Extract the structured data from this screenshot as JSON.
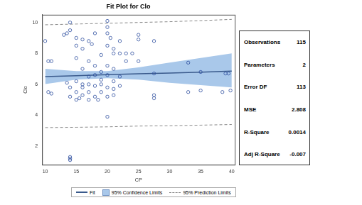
{
  "chart_data": {
    "type": "scatter",
    "title": "Fit Plot for Clo",
    "x_label": "CP",
    "y_label": "Clo",
    "xlim": [
      9.5,
      40.5
    ],
    "xticks": [
      10,
      15,
      20,
      25,
      30,
      35,
      40
    ],
    "ylim": [
      0.8,
      10.5
    ],
    "yticks": [
      2,
      4,
      6,
      8,
      10
    ],
    "grid": false,
    "legend": "bottom",
    "points": {
      "color": "#2f4f9f",
      "marker": "circle",
      "x": [
        10,
        10.5,
        11,
        10.5,
        11,
        13,
        13.5,
        14,
        14,
        13.5,
        14,
        14,
        14,
        14,
        14,
        15,
        15,
        15,
        15,
        15,
        15,
        15.5,
        16,
        16,
        16,
        16,
        16,
        16,
        17,
        17,
        17,
        17,
        17,
        17,
        17.5,
        18,
        18,
        18,
        18,
        18,
        18.5,
        19,
        19,
        19,
        19,
        19,
        20,
        20,
        20,
        20,
        20,
        20,
        20,
        20,
        20,
        20.5,
        21,
        21,
        21,
        21,
        21,
        21,
        22,
        22,
        22,
        22,
        23,
        23,
        24,
        25,
        25,
        25,
        27.5,
        27.5,
        27.5,
        27.5,
        33,
        33,
        35,
        35,
        38.5,
        39,
        39.5,
        39.8
      ],
      "y": [
        8.8,
        7.5,
        7.5,
        5.5,
        5.4,
        9.2,
        9.3,
        9.5,
        10,
        6.1,
        5.2,
        5.8,
        1.3,
        1.2,
        1.1,
        7.7,
        8.5,
        9.0,
        5.0,
        5.5,
        6.2,
        5.1,
        8.3,
        8.9,
        7.0,
        6.0,
        5.8,
        5.3,
        8.8,
        7.5,
        6.5,
        6.0,
        5.5,
        5.0,
        8.6,
        9.3,
        7.2,
        6.6,
        5.9,
        5.2,
        5.0,
        6.8,
        6.3,
        6.0,
        5.5,
        7.9,
        10.1,
        9.7,
        9.3,
        8.5,
        7.2,
        6.6,
        5.8,
        5.2,
        3.9,
        9.0,
        8.3,
        8.0,
        7.0,
        6.2,
        5.7,
        5.3,
        8.8,
        8.0,
        6.5,
        5.9,
        7.5,
        8.0,
        8.0,
        9.2,
        8.9,
        7.5,
        8.8,
        6.7,
        5.3,
        5.1,
        7.4,
        5.5,
        6.8,
        5.6,
        5.5,
        6.7,
        6.7,
        5.6
      ]
    },
    "series": [
      {
        "name": "Fit",
        "type": "line",
        "line_style": "solid",
        "color": "#3a5a8c",
        "x": [
          10,
          15,
          20,
          25,
          30,
          35,
          40
        ],
        "values": [
          6.5,
          6.56,
          6.62,
          6.68,
          6.73,
          6.79,
          6.85
        ]
      },
      {
        "name": "95% Confidence Limits",
        "type": "band",
        "color": "#a9c8ea",
        "x": [
          10,
          15,
          20,
          25,
          30,
          35,
          40
        ],
        "lower": [
          6.02,
          6.3,
          6.4,
          6.3,
          6.1,
          5.95,
          5.8
        ],
        "upper": [
          7.0,
          6.85,
          6.85,
          7.1,
          7.4,
          7.7,
          8.0
        ]
      },
      {
        "name": "95% Prediction Limits",
        "type": "band_lines",
        "line_style": "dashed",
        "color": "#888888",
        "x": [
          10,
          15,
          20,
          25,
          30,
          35,
          40
        ],
        "lower": [
          3.2,
          3.22,
          3.25,
          3.3,
          3.32,
          3.36,
          3.4
        ],
        "upper": [
          9.85,
          9.9,
          9.95,
          10.0,
          10.05,
          10.12,
          10.2
        ]
      }
    ],
    "stats": [
      {
        "label": "Observations",
        "value": 115
      },
      {
        "label": "Parameters",
        "value": 2
      },
      {
        "label": "Error DF",
        "value": 113
      },
      {
        "label": "MSE",
        "value": 2.808
      },
      {
        "label": "R-Square",
        "value": 0.0014
      },
      {
        "label": "Adj R-Square",
        "value": -0.007
      }
    ]
  }
}
